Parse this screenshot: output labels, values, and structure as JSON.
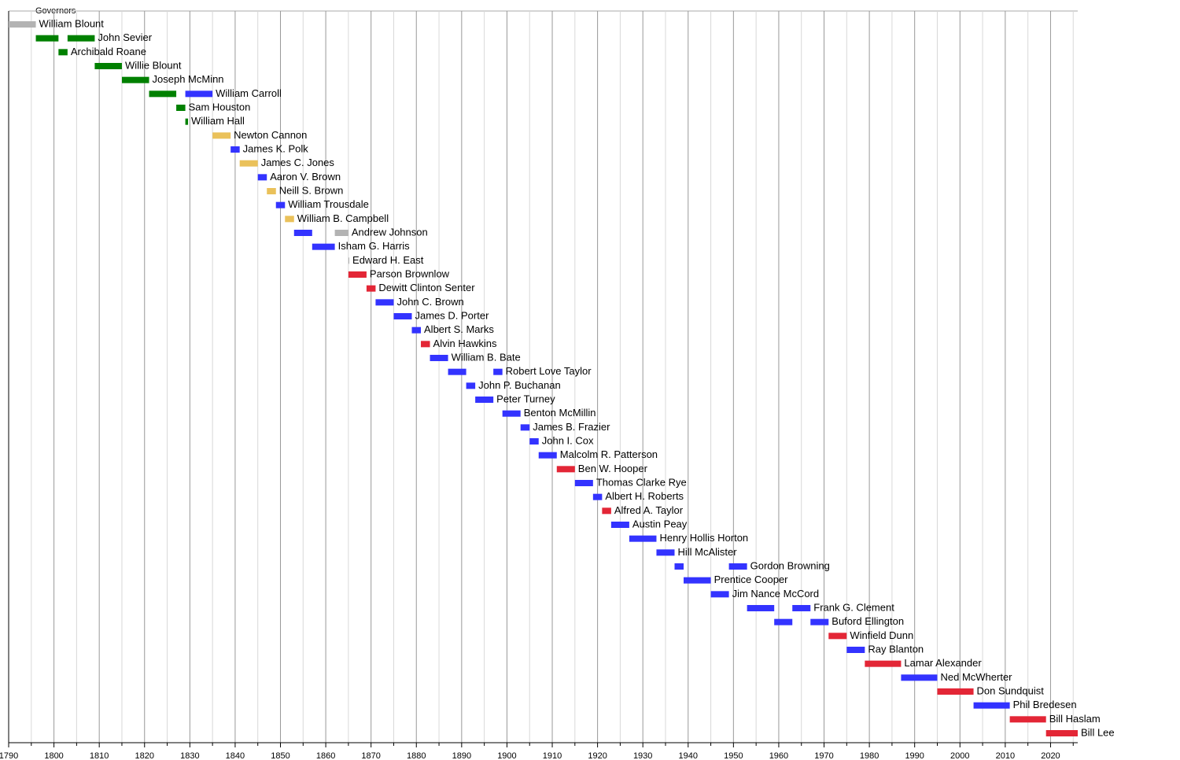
{
  "chart_data": {
    "type": "timeline",
    "title": "Governors",
    "xlim": [
      1790,
      2026
    ],
    "xticks": [
      1790,
      1800,
      1810,
      1820,
      1830,
      1840,
      1850,
      1860,
      1870,
      1880,
      1890,
      1900,
      1910,
      1920,
      1930,
      1940,
      1950,
      1960,
      1970,
      1980,
      1990,
      2000,
      2010,
      2020
    ],
    "minor_xticks": [
      1795,
      1805,
      1815,
      1825,
      1835,
      1845,
      1855,
      1865,
      1875,
      1885,
      1895,
      1905,
      1915,
      1925,
      1935,
      1945,
      1955,
      1965,
      1975,
      1985,
      1995,
      2005,
      2015,
      2025
    ],
    "grid": true,
    "series": [
      {
        "name": "William Blount",
        "bars": [
          {
            "start": 1790,
            "end": 1796,
            "color": "#b3b3b3"
          }
        ]
      },
      {
        "name": "John Sevier",
        "bars": [
          {
            "start": 1796,
            "end": 1801,
            "color": "#008000"
          },
          {
            "start": 1803,
            "end": 1809,
            "color": "#008000"
          }
        ]
      },
      {
        "name": "Archibald Roane",
        "bars": [
          {
            "start": 1801,
            "end": 1803,
            "color": "#008000"
          }
        ]
      },
      {
        "name": "Willie Blount",
        "bars": [
          {
            "start": 1809,
            "end": 1815,
            "color": "#008000"
          }
        ]
      },
      {
        "name": "Joseph McMinn",
        "bars": [
          {
            "start": 1815,
            "end": 1821,
            "color": "#008000"
          }
        ]
      },
      {
        "name": "William Carroll",
        "bars": [
          {
            "start": 1821,
            "end": 1827,
            "color": "#008000"
          },
          {
            "start": 1829,
            "end": 1835,
            "color": "#3333ff"
          }
        ]
      },
      {
        "name": "Sam Houston",
        "bars": [
          {
            "start": 1827,
            "end": 1829,
            "color": "#008000"
          }
        ]
      },
      {
        "name": "William Hall",
        "bars": [
          {
            "start": 1829,
            "end": 1829.6,
            "color": "#008000"
          }
        ]
      },
      {
        "name": "Newton Cannon",
        "bars": [
          {
            "start": 1835,
            "end": 1839,
            "color": "#eac15a"
          }
        ]
      },
      {
        "name": "James K. Polk",
        "bars": [
          {
            "start": 1839,
            "end": 1841,
            "color": "#3333ff"
          }
        ]
      },
      {
        "name": "James C. Jones",
        "bars": [
          {
            "start": 1841,
            "end": 1845,
            "color": "#eac15a"
          }
        ]
      },
      {
        "name": "Aaron V. Brown",
        "bars": [
          {
            "start": 1845,
            "end": 1847,
            "color": "#3333ff"
          }
        ]
      },
      {
        "name": "Neill S. Brown",
        "bars": [
          {
            "start": 1847,
            "end": 1849,
            "color": "#eac15a"
          }
        ]
      },
      {
        "name": "William Trousdale",
        "bars": [
          {
            "start": 1849,
            "end": 1851,
            "color": "#3333ff"
          }
        ]
      },
      {
        "name": "William B. Campbell",
        "bars": [
          {
            "start": 1851,
            "end": 1853,
            "color": "#eac15a"
          }
        ]
      },
      {
        "name": "Andrew Johnson",
        "bars": [
          {
            "start": 1853,
            "end": 1857,
            "color": "#3333ff"
          },
          {
            "start": 1862,
            "end": 1865,
            "color": "#b3b3b3"
          }
        ]
      },
      {
        "name": "Isham G. Harris",
        "bars": [
          {
            "start": 1857,
            "end": 1862,
            "color": "#3333ff"
          }
        ]
      },
      {
        "name": "Edward H. East",
        "bars": [
          {
            "start": 1865,
            "end": 1865.2,
            "color": "#b3b3b3"
          }
        ]
      },
      {
        "name": "Parson Brownlow",
        "bars": [
          {
            "start": 1865,
            "end": 1869,
            "color": "#e32636"
          }
        ]
      },
      {
        "name": "Dewitt Clinton Senter",
        "bars": [
          {
            "start": 1869,
            "end": 1871,
            "color": "#e32636"
          }
        ]
      },
      {
        "name": "John C. Brown",
        "bars": [
          {
            "start": 1871,
            "end": 1875,
            "color": "#3333ff"
          }
        ]
      },
      {
        "name": "James D. Porter",
        "bars": [
          {
            "start": 1875,
            "end": 1879,
            "color": "#3333ff"
          }
        ]
      },
      {
        "name": "Albert S. Marks",
        "bars": [
          {
            "start": 1879,
            "end": 1881,
            "color": "#3333ff"
          }
        ]
      },
      {
        "name": "Alvin Hawkins",
        "bars": [
          {
            "start": 1881,
            "end": 1883,
            "color": "#e32636"
          }
        ]
      },
      {
        "name": "William B. Bate",
        "bars": [
          {
            "start": 1883,
            "end": 1887,
            "color": "#3333ff"
          }
        ]
      },
      {
        "name": "Robert Love Taylor",
        "bars": [
          {
            "start": 1887,
            "end": 1891,
            "color": "#3333ff"
          },
          {
            "start": 1897,
            "end": 1899,
            "color": "#3333ff"
          }
        ]
      },
      {
        "name": "John P. Buchanan",
        "bars": [
          {
            "start": 1891,
            "end": 1893,
            "color": "#3333ff"
          }
        ]
      },
      {
        "name": "Peter Turney",
        "bars": [
          {
            "start": 1893,
            "end": 1897,
            "color": "#3333ff"
          }
        ]
      },
      {
        "name": "Benton McMillin",
        "bars": [
          {
            "start": 1899,
            "end": 1903,
            "color": "#3333ff"
          }
        ]
      },
      {
        "name": "James B. Frazier",
        "bars": [
          {
            "start": 1903,
            "end": 1905,
            "color": "#3333ff"
          }
        ]
      },
      {
        "name": "John I. Cox",
        "bars": [
          {
            "start": 1905,
            "end": 1907,
            "color": "#3333ff"
          }
        ]
      },
      {
        "name": "Malcolm R. Patterson",
        "bars": [
          {
            "start": 1907,
            "end": 1911,
            "color": "#3333ff"
          }
        ]
      },
      {
        "name": "Ben W. Hooper",
        "bars": [
          {
            "start": 1911,
            "end": 1915,
            "color": "#e32636"
          }
        ]
      },
      {
        "name": "Thomas Clarke Rye",
        "bars": [
          {
            "start": 1915,
            "end": 1919,
            "color": "#3333ff"
          }
        ]
      },
      {
        "name": "Albert H. Roberts",
        "bars": [
          {
            "start": 1919,
            "end": 1921,
            "color": "#3333ff"
          }
        ]
      },
      {
        "name": "Alfred A. Taylor",
        "bars": [
          {
            "start": 1921,
            "end": 1923,
            "color": "#e32636"
          }
        ]
      },
      {
        "name": "Austin Peay",
        "bars": [
          {
            "start": 1923,
            "end": 1927,
            "color": "#3333ff"
          }
        ]
      },
      {
        "name": "Henry Hollis Horton",
        "bars": [
          {
            "start": 1927,
            "end": 1933,
            "color": "#3333ff"
          }
        ]
      },
      {
        "name": "Hill McAlister",
        "bars": [
          {
            "start": 1933,
            "end": 1937,
            "color": "#3333ff"
          }
        ]
      },
      {
        "name": "Gordon Browning",
        "bars": [
          {
            "start": 1937,
            "end": 1939,
            "color": "#3333ff"
          },
          {
            "start": 1949,
            "end": 1953,
            "color": "#3333ff"
          }
        ]
      },
      {
        "name": "Prentice Cooper",
        "bars": [
          {
            "start": 1939,
            "end": 1945,
            "color": "#3333ff"
          }
        ]
      },
      {
        "name": "Jim Nance McCord",
        "bars": [
          {
            "start": 1945,
            "end": 1949,
            "color": "#3333ff"
          }
        ]
      },
      {
        "name": "Frank G. Clement",
        "bars": [
          {
            "start": 1953,
            "end": 1959,
            "color": "#3333ff"
          },
          {
            "start": 1963,
            "end": 1967,
            "color": "#3333ff"
          }
        ]
      },
      {
        "name": "Buford Ellington",
        "bars": [
          {
            "start": 1959,
            "end": 1963,
            "color": "#3333ff"
          },
          {
            "start": 1967,
            "end": 1971,
            "color": "#3333ff"
          }
        ]
      },
      {
        "name": "Winfield Dunn",
        "bars": [
          {
            "start": 1971,
            "end": 1975,
            "color": "#e32636"
          }
        ]
      },
      {
        "name": "Ray Blanton",
        "bars": [
          {
            "start": 1975,
            "end": 1979,
            "color": "#3333ff"
          }
        ]
      },
      {
        "name": "Lamar Alexander",
        "bars": [
          {
            "start": 1979,
            "end": 1987,
            "color": "#e32636"
          }
        ]
      },
      {
        "name": "Ned McWherter",
        "bars": [
          {
            "start": 1987,
            "end": 1995,
            "color": "#3333ff"
          }
        ]
      },
      {
        "name": "Don Sundquist",
        "bars": [
          {
            "start": 1995,
            "end": 2003,
            "color": "#e32636"
          }
        ]
      },
      {
        "name": "Phil Bredesen",
        "bars": [
          {
            "start": 2003,
            "end": 2011,
            "color": "#3333ff"
          }
        ]
      },
      {
        "name": "Bill Haslam",
        "bars": [
          {
            "start": 2011,
            "end": 2019,
            "color": "#e32636"
          }
        ]
      },
      {
        "name": "Bill Lee",
        "bars": [
          {
            "start": 2019,
            "end": 2026,
            "color": "#e32636"
          }
        ]
      }
    ]
  }
}
